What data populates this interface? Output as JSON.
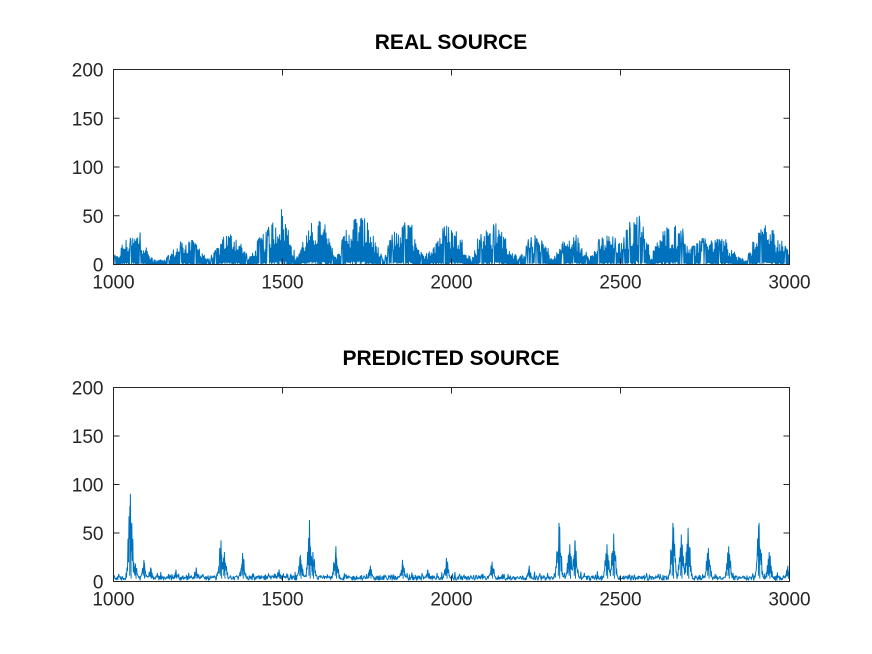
{
  "chart_data": [
    {
      "type": "line",
      "title": "REAL SOURCE",
      "xlabel": "",
      "ylabel": "",
      "xlim": [
        1000,
        3000
      ],
      "ylim": [
        0,
        200
      ],
      "xticks": [
        1000,
        1500,
        2000,
        2500,
        3000
      ],
      "yticks": [
        0,
        50,
        100,
        150,
        200
      ],
      "grid": false,
      "color": "#0072BD",
      "series": [
        {
          "envelope_x": [
            1000,
            1010,
            1030,
            1060,
            1080,
            1090,
            1110,
            1130,
            1160,
            1200,
            1230,
            1260,
            1280,
            1300,
            1330,
            1360,
            1380,
            1400,
            1430,
            1460,
            1480,
            1500,
            1520,
            1540,
            1560,
            1590,
            1620,
            1640,
            1660,
            1690,
            1720,
            1750,
            1780,
            1800,
            1820,
            1850,
            1880,
            1900,
            1920,
            1950,
            1980,
            2010,
            2040,
            2060,
            2080,
            2110,
            2140,
            2170,
            2200,
            2230,
            2260,
            2280,
            2300,
            2330,
            2370,
            2390,
            2410,
            2440,
            2470,
            2500,
            2520,
            2550,
            2570,
            2590,
            2620,
            2650,
            2680,
            2710,
            2740,
            2760,
            2780,
            2810,
            2840,
            2870,
            2900,
            2920,
            2950,
            2980,
            3000
          ],
          "envelope_y": [
            12,
            8,
            26,
            31,
            36,
            25,
            8,
            4,
            9,
            25,
            28,
            18,
            5,
            14,
            33,
            35,
            22,
            6,
            28,
            40,
            52,
            61,
            38,
            6,
            27,
            45,
            49,
            25,
            8,
            42,
            54,
            47,
            20,
            4,
            30,
            44,
            45,
            18,
            8,
            30,
            42,
            40,
            22,
            5,
            32,
            40,
            44,
            20,
            6,
            28,
            31,
            22,
            6,
            25,
            32,
            18,
            8,
            29,
            33,
            22,
            40,
            56,
            42,
            10,
            35,
            44,
            40,
            20,
            26,
            35,
            28,
            30,
            12,
            4,
            32,
            42,
            38,
            24,
            18
          ]
        }
      ]
    },
    {
      "type": "line",
      "title": "PREDICTED SOURCE",
      "xlabel": "",
      "ylabel": "",
      "xlim": [
        1000,
        3000
      ],
      "ylim": [
        0,
        200
      ],
      "xticks": [
        1000,
        1500,
        2000,
        2500,
        3000
      ],
      "yticks": [
        0,
        50,
        100,
        150,
        200
      ],
      "grid": false,
      "color": "#0072BD",
      "series": [
        {
          "baseline": 6,
          "peaks": [
            {
              "x": 1050,
              "y": 90
            },
            {
              "x": 1065,
              "y": 18
            },
            {
              "x": 1090,
              "y": 22
            },
            {
              "x": 1110,
              "y": 14
            },
            {
              "x": 1185,
              "y": 12
            },
            {
              "x": 1245,
              "y": 14
            },
            {
              "x": 1318,
              "y": 42
            },
            {
              "x": 1328,
              "y": 30
            },
            {
              "x": 1382,
              "y": 29
            },
            {
              "x": 1490,
              "y": 12
            },
            {
              "x": 1553,
              "y": 27
            },
            {
              "x": 1580,
              "y": 63
            },
            {
              "x": 1590,
              "y": 30
            },
            {
              "x": 1658,
              "y": 36
            },
            {
              "x": 1760,
              "y": 16
            },
            {
              "x": 1855,
              "y": 22
            },
            {
              "x": 1930,
              "y": 12
            },
            {
              "x": 1985,
              "y": 24
            },
            {
              "x": 2120,
              "y": 20
            },
            {
              "x": 2230,
              "y": 16
            },
            {
              "x": 2318,
              "y": 60
            },
            {
              "x": 2350,
              "y": 38
            },
            {
              "x": 2365,
              "y": 42
            },
            {
              "x": 2460,
              "y": 38
            },
            {
              "x": 2480,
              "y": 49
            },
            {
              "x": 2655,
              "y": 60
            },
            {
              "x": 2680,
              "y": 48
            },
            {
              "x": 2700,
              "y": 55
            },
            {
              "x": 2760,
              "y": 34
            },
            {
              "x": 2820,
              "y": 36
            },
            {
              "x": 2910,
              "y": 60
            },
            {
              "x": 2940,
              "y": 30
            },
            {
              "x": 2995,
              "y": 16
            }
          ]
        }
      ]
    }
  ]
}
